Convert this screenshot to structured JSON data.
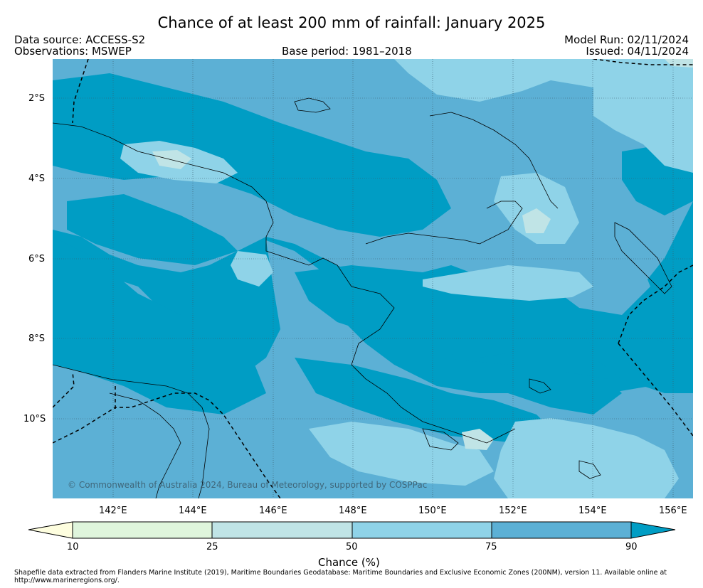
{
  "header": {
    "title": "Chance of at least 200 mm of rainfall: January 2025",
    "data_source": "Data source: ACCESS-S2",
    "observations": "Observations: MSWEP",
    "base_period": "Base period: 1981–2018",
    "model_run": "Model Run: 02/11/2024",
    "issued": "Issued: 04/11/2024"
  },
  "map": {
    "lat_ticks": [
      "2°S",
      "4°S",
      "6°S",
      "8°S",
      "10°S"
    ],
    "lon_ticks": [
      "142°E",
      "144°E",
      "146°E",
      "148°E",
      "150°E",
      "152°E",
      "154°E",
      "156°E"
    ],
    "copyright": "© Commonwealth of Australia 2024, Bureau of Meteorology, supported by COSPPac",
    "colors": {
      "bin_75_90": "#5cb0d5",
      "bin_50_75": "#8fd3e8",
      "bin_25_50": "#c0e4e6",
      "bin_above_90": "#009dc4",
      "bin_10_25": "#dff5dc",
      "bin_below_10": "#fefedf"
    }
  },
  "colorbar": {
    "ticks": [
      "10",
      "25",
      "50",
      "75",
      "90"
    ],
    "label": "Chance (%)",
    "colors": [
      "#fefedf",
      "#dff5dc",
      "#c0e4e6",
      "#8fd3e8",
      "#5cb0d5",
      "#009dc4"
    ]
  },
  "footnote": "Shapefile data extracted from Flanders Marine Institute (2019), Maritime Boundaries Geodatabase: Maritime Boundaries and Exclusive Economic Zones (200NM), version 11. Available online at http://www.marineregions.org/."
}
